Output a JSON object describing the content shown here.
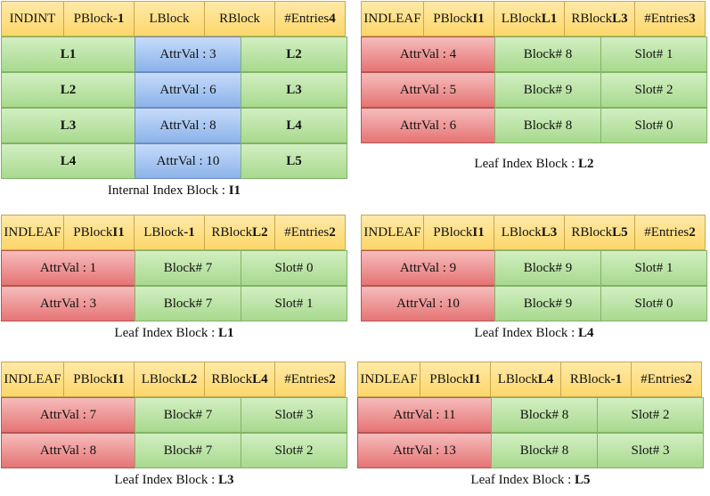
{
  "i1": {
    "header": [
      {
        "pre": "INDINT",
        "val": ""
      },
      {
        "pre": "PBlock ",
        "val": "-1"
      },
      {
        "pre": "LBlock",
        "val": ""
      },
      {
        "pre": "RBlock",
        "val": ""
      },
      {
        "pre": "#Entries ",
        "val": "4"
      }
    ],
    "rows": [
      {
        "left": "L1",
        "attr": "AttrVal : 3",
        "right": "L2"
      },
      {
        "left": "L2",
        "attr": "AttrVal : 6",
        "right": "L3"
      },
      {
        "left": "L3",
        "attr": "AttrVal : 8",
        "right": "L4"
      },
      {
        "left": "L4",
        "attr": "AttrVal : 10",
        "right": "L5"
      }
    ],
    "caption_pre": "Internal Index Block : ",
    "caption_id": "I1"
  },
  "l2": {
    "header": [
      {
        "pre": "INDLEAF",
        "val": ""
      },
      {
        "pre": "PBlock ",
        "val": "I1"
      },
      {
        "pre": "LBlock ",
        "val": "L1"
      },
      {
        "pre": "RBlock ",
        "val": "L3"
      },
      {
        "pre": "#Entries ",
        "val": "3"
      }
    ],
    "rows": [
      {
        "attr": "AttrVal : 4",
        "block": "Block# 8",
        "slot": "Slot# 1"
      },
      {
        "attr": "AttrVal : 5",
        "block": "Block# 9",
        "slot": "Slot# 2"
      },
      {
        "attr": "AttrVal : 6",
        "block": "Block# 8",
        "slot": "Slot# 0"
      }
    ],
    "caption_pre": "Leaf Index Block : ",
    "caption_id": "L2"
  },
  "l1": {
    "header": [
      {
        "pre": "INDLEAF",
        "val": ""
      },
      {
        "pre": "PBlock ",
        "val": "I1"
      },
      {
        "pre": "LBlock ",
        "val": "-1"
      },
      {
        "pre": "RBlock ",
        "val": "L2"
      },
      {
        "pre": "#Entries ",
        "val": "2"
      }
    ],
    "rows": [
      {
        "attr": "AttrVal : 1",
        "block": "Block# 7",
        "slot": "Slot# 0"
      },
      {
        "attr": "AttrVal : 3",
        "block": "Block# 7",
        "slot": "Slot# 1"
      }
    ],
    "caption_pre": "Leaf Index Block : ",
    "caption_id": "L1"
  },
  "l4": {
    "header": [
      {
        "pre": "INDLEAF",
        "val": ""
      },
      {
        "pre": "PBlock ",
        "val": "I1"
      },
      {
        "pre": "LBlock ",
        "val": "L3"
      },
      {
        "pre": "RBlock ",
        "val": "L5"
      },
      {
        "pre": "#Entries ",
        "val": "2"
      }
    ],
    "rows": [
      {
        "attr": "AttrVal : 9",
        "block": "Block# 9",
        "slot": "Slot# 1"
      },
      {
        "attr": "AttrVal : 10",
        "block": "Block# 9",
        "slot": "Slot# 0"
      }
    ],
    "caption_pre": "Leaf Index Block : ",
    "caption_id": "L4"
  },
  "l3": {
    "header": [
      {
        "pre": "INDLEAF",
        "val": ""
      },
      {
        "pre": "PBlock ",
        "val": "I1"
      },
      {
        "pre": "LBlock ",
        "val": "L2"
      },
      {
        "pre": "RBlock ",
        "val": "L4"
      },
      {
        "pre": "#Entries ",
        "val": "2"
      }
    ],
    "rows": [
      {
        "attr": "AttrVal : 7",
        "block": "Block# 7",
        "slot": "Slot# 3"
      },
      {
        "attr": "AttrVal : 8",
        "block": "Block# 7",
        "slot": "Slot# 2"
      }
    ],
    "caption_pre": "Leaf Index Block : ",
    "caption_id": "L3"
  },
  "l5": {
    "header": [
      {
        "pre": "INDLEAF",
        "val": ""
      },
      {
        "pre": "PBlock ",
        "val": "I1"
      },
      {
        "pre": "LBlock ",
        "val": "L4"
      },
      {
        "pre": "RBlock ",
        "val": "-1"
      },
      {
        "pre": "#Entries ",
        "val": "2"
      }
    ],
    "rows": [
      {
        "attr": "AttrVal : 11",
        "block": "Block# 8",
        "slot": "Slot# 2"
      },
      {
        "attr": "AttrVal : 13",
        "block": "Block# 8",
        "slot": "Slot# 3"
      }
    ],
    "caption_pre": "Leaf Index Block : ",
    "caption_id": "L5"
  }
}
